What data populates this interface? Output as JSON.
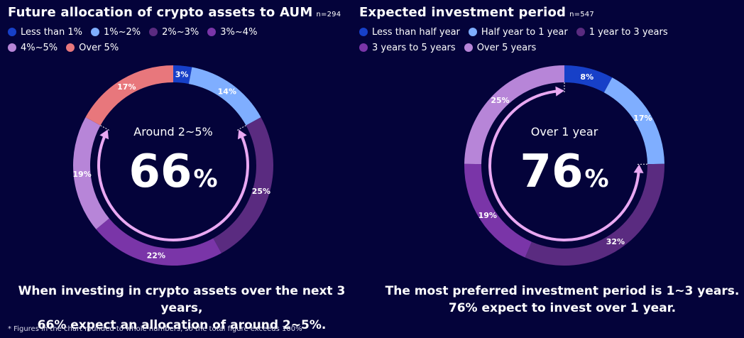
{
  "chart_data": [
    {
      "type": "pie",
      "title": "Future allocation of crypto assets to AUM",
      "sample_size": "n=294",
      "categories": [
        "Less than 1%",
        "1%~2%",
        "2%~3%",
        "3%~4%",
        "4%~5%",
        "Over 5%"
      ],
      "values": [
        3,
        14,
        25,
        22,
        19,
        17
      ],
      "value_labels": [
        "3%",
        "14%",
        "25%",
        "22%",
        "19%",
        "17%"
      ],
      "colors": [
        "#1740c8",
        "#7faeff",
        "#5a2b80",
        "#7a35a8",
        "#b785d8",
        "#e8777c"
      ],
      "center_label": "Around 2~5%",
      "center_value": "66",
      "center_unit": "%",
      "highlight_range": [
        "2%~3%",
        "4%~5%"
      ],
      "caption_lines": [
        "When investing in crypto assets over the next 3 years,",
        "66% expect an allocation of around 2~5%."
      ]
    },
    {
      "type": "pie",
      "title": "Expected investment period",
      "sample_size": "n=547",
      "categories": [
        "Less than half year",
        "Half year to 1 year",
        "1 year to 3 years",
        "3 years to 5 years",
        "Over 5 years"
      ],
      "values": [
        8,
        17,
        32,
        19,
        25
      ],
      "value_labels": [
        "8%",
        "17%",
        "32%",
        "19%",
        "25%"
      ],
      "colors": [
        "#1740c8",
        "#7faeff",
        "#5a2b80",
        "#7a35a8",
        "#b785d8"
      ],
      "center_label": "Over 1 year",
      "center_value": "76",
      "center_unit": "%",
      "highlight_range": [
        "1 year to 3 years",
        "Over 5 years"
      ],
      "caption_lines": [
        "The most preferred investment period is 1~3 years.",
        "76% expect to invest over 1 year."
      ]
    }
  ],
  "legend_rows": [
    [
      [
        0,
        1,
        2,
        3
      ],
      [
        4,
        5
      ]
    ],
    [
      [
        0,
        1,
        2
      ],
      [
        3,
        4
      ]
    ]
  ],
  "footnote": "* Figures in the chart rounded to whole numbers, so the total figure exceeds 100%"
}
